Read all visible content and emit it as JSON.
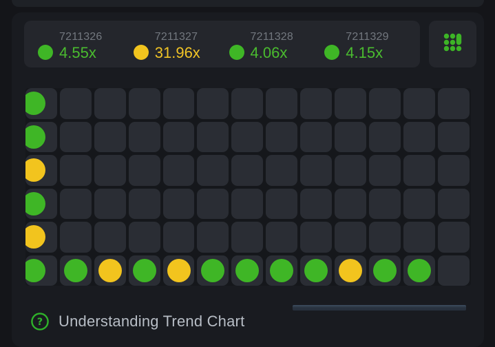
{
  "app": {
    "widget": "Crash Game Trend Chart"
  },
  "colors": {
    "green": "#3fb626",
    "yellow": "#f2c41e",
    "green_text": "#4abc2f",
    "yellow_text": "#f1c426",
    "icon_green": "#3db426"
  },
  "header": {
    "rounds": [
      {
        "id": "7211326",
        "multiplier": "4.55x",
        "result": "green"
      },
      {
        "id": "7211327",
        "multiplier": "31.96x",
        "result": "yellow"
      },
      {
        "id": "7211328",
        "multiplier": "4.06x",
        "result": "green"
      },
      {
        "id": "7211329",
        "multiplier": "4.15x",
        "result": "green"
      }
    ],
    "grid_view_icon": "dots-grid-icon"
  },
  "trend_grid": {
    "rows": 6,
    "columns": 13,
    "cells": [
      [
        "green",
        "",
        "",
        "",
        "",
        "",
        "",
        "",
        "",
        "",
        "",
        "",
        ""
      ],
      [
        "green",
        "",
        "",
        "",
        "",
        "",
        "",
        "",
        "",
        "",
        "",
        "",
        ""
      ],
      [
        "yellow",
        "",
        "",
        "",
        "",
        "",
        "",
        "",
        "",
        "",
        "",
        "",
        ""
      ],
      [
        "green",
        "",
        "",
        "",
        "",
        "",
        "",
        "",
        "",
        "",
        "",
        "",
        ""
      ],
      [
        "yellow",
        "",
        "",
        "",
        "",
        "",
        "",
        "",
        "",
        "",
        "",
        "",
        ""
      ],
      [
        "green",
        "green",
        "yellow",
        "green",
        "yellow",
        "green",
        "green",
        "green",
        "green",
        "yellow",
        "green",
        "green",
        ""
      ]
    ]
  },
  "scrollbar": {
    "orientation": "horizontal"
  },
  "footer": {
    "help_icon": "question-circle-icon",
    "label": "Understanding Trend Chart"
  }
}
